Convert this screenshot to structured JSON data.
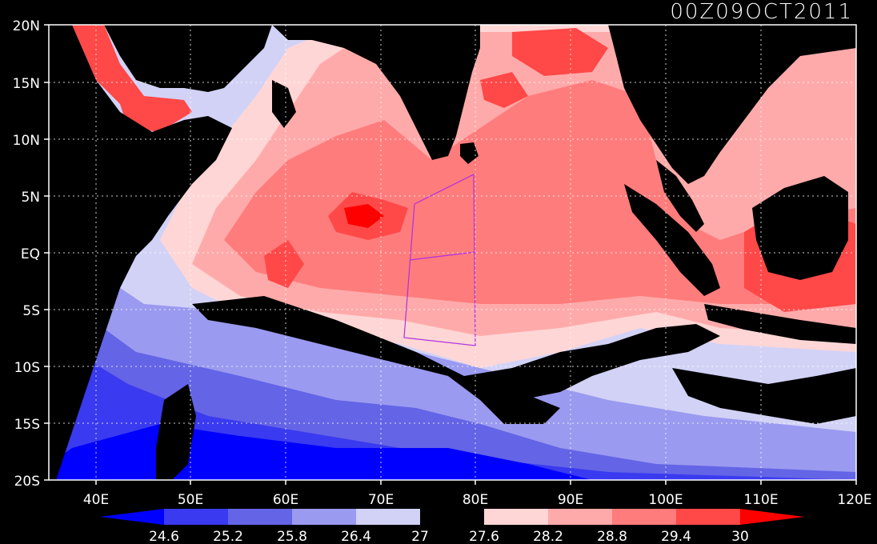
{
  "title": "00Z09OCT2011",
  "axes": {
    "lat_labels": [
      "20N",
      "15N",
      "10N",
      "5N",
      "EQ",
      "5S",
      "10S",
      "15S",
      "20S"
    ],
    "lon_labels": [
      "40E",
      "50E",
      "60E",
      "70E",
      "80E",
      "90E",
      "100E",
      "110E",
      "120E"
    ],
    "lon_range": [
      35,
      120
    ],
    "lat_range": [
      -20,
      20
    ]
  },
  "colorbar": {
    "labels": [
      "24.6",
      "25.2",
      "25.8",
      "26.4",
      "27",
      "27.6",
      "28.2",
      "28.8",
      "29.4",
      "30"
    ],
    "colors": [
      "#0000ff",
      "#3a3af0",
      "#6464e6",
      "#9a9af0",
      "#d2d2f6",
      "#000000",
      "#ffd6d6",
      "#ffaaaa",
      "#ff7c7c",
      "#ff4848",
      "#ff0000"
    ]
  },
  "colors": {
    "land": "#000000",
    "background": "#000000",
    "box_outline": "#b030e0"
  }
}
